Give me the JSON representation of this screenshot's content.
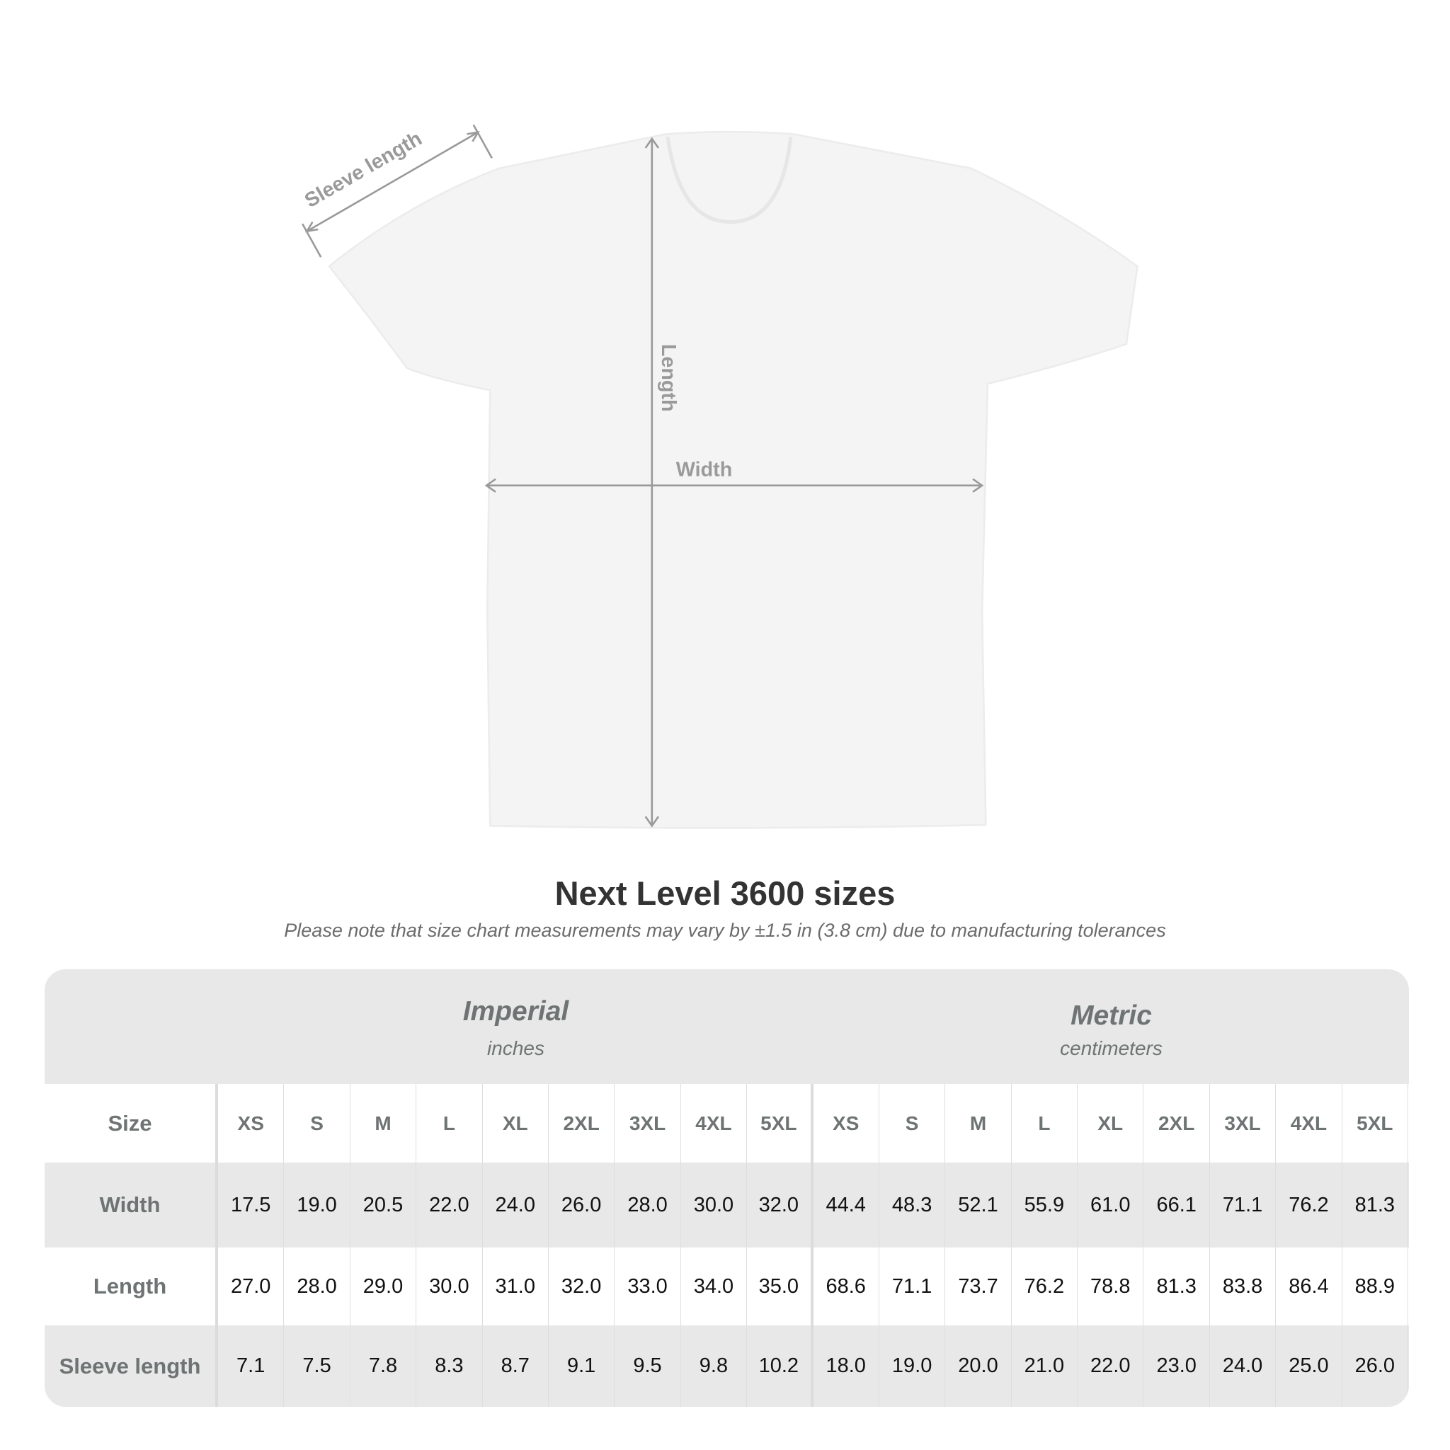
{
  "diagram": {
    "labels": {
      "sleeve": "Sleeve length",
      "length": "Length",
      "width": "Width"
    },
    "shirt_color": "#f4f4f4",
    "arrow_color": "#9a9a9a"
  },
  "title": "Next Level 3600 sizes",
  "note": "Please note that size chart measurements may vary by ±1.5 in (3.8 cm) due to manufacturing tolerances",
  "table": {
    "imperial": {
      "title": "Imperial",
      "unit": "inches"
    },
    "metric": {
      "title": "Metric",
      "unit": "centimeters"
    },
    "size_label": "Size",
    "sizes": [
      "XS",
      "S",
      "M",
      "L",
      "XL",
      "2XL",
      "3XL",
      "4XL",
      "5XL"
    ],
    "rows": [
      {
        "label": "Width",
        "imperial": [
          "17.5",
          "19.0",
          "20.5",
          "22.0",
          "24.0",
          "26.0",
          "28.0",
          "30.0",
          "32.0"
        ],
        "metric": [
          "44.4",
          "48.3",
          "52.1",
          "55.9",
          "61.0",
          "66.1",
          "71.1",
          "76.2",
          "81.3"
        ]
      },
      {
        "label": "Length",
        "imperial": [
          "27.0",
          "28.0",
          "29.0",
          "30.0",
          "31.0",
          "32.0",
          "33.0",
          "34.0",
          "35.0"
        ],
        "metric": [
          "68.6",
          "71.1",
          "73.7",
          "76.2",
          "78.8",
          "81.3",
          "83.8",
          "86.4",
          "88.9"
        ]
      },
      {
        "label": "Sleeve length",
        "imperial": [
          "7.1",
          "7.5",
          "7.8",
          "8.3",
          "8.7",
          "9.1",
          "9.5",
          "9.8",
          "10.2"
        ],
        "metric": [
          "18.0",
          "19.0",
          "20.0",
          "21.0",
          "22.0",
          "23.0",
          "24.0",
          "25.0",
          "26.0"
        ]
      }
    ]
  }
}
